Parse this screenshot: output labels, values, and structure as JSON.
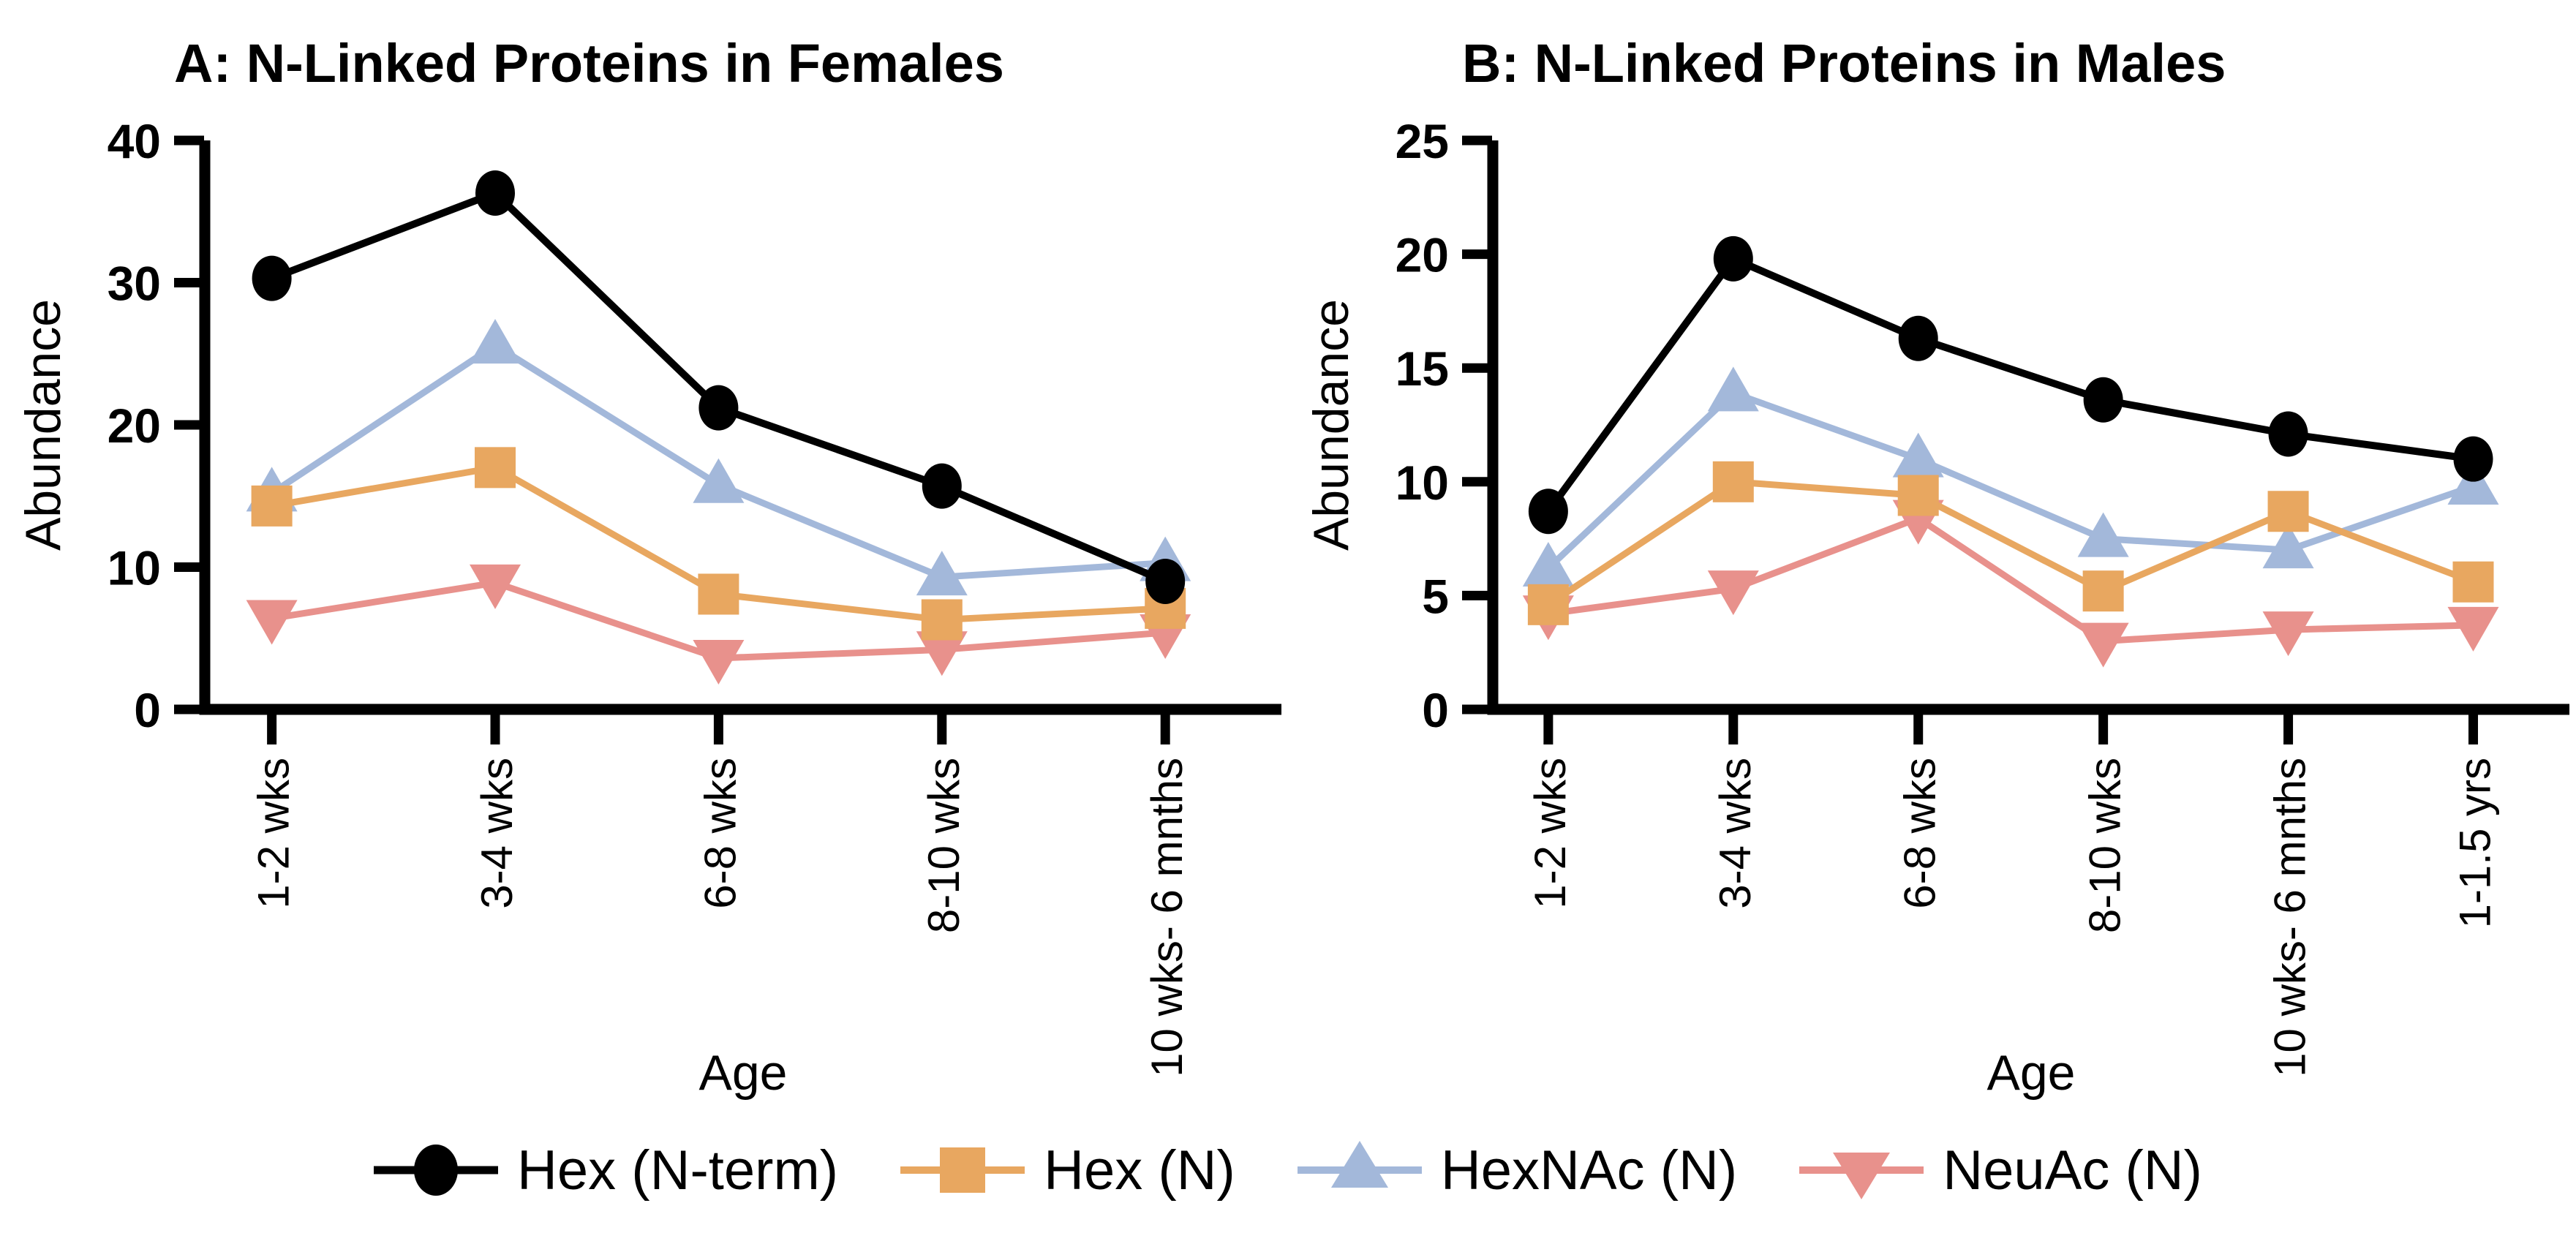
{
  "figure": {
    "background": "#ffffff",
    "legend": {
      "items": [
        {
          "label": "Hex (N-term)",
          "marker": "circle",
          "color": "#000000"
        },
        {
          "label": "Hex (N)",
          "marker": "square",
          "color": "#E8A760"
        },
        {
          "label": "HexNAc (N)",
          "marker": "triangle-up",
          "color": "#A3B8DA"
        },
        {
          "label": "NeuAc (N)",
          "marker": "triangle-down",
          "color": "#E8918C"
        }
      ]
    }
  },
  "chart_data": [
    {
      "type": "line",
      "panel": "A",
      "title": "A: N-Linked Proteins in Females",
      "xlabel": "Age",
      "ylabel": "Abundance",
      "ylim": [
        0,
        40
      ],
      "yticks": [
        0,
        10,
        20,
        30,
        40
      ],
      "grid": false,
      "legend_position": "bottom",
      "categories": [
        "1-2 wks",
        "3-4 wks",
        "6-8 wks",
        "8-10 wks",
        "10 wks- 6 mnths"
      ],
      "series": [
        {
          "name": "Hex (N-term)",
          "marker": "circle",
          "color": "#000000",
          "values": [
            30.3,
            36.3,
            21.2,
            15.7,
            9.0
          ]
        },
        {
          "name": "Hex (N)",
          "marker": "square",
          "color": "#E8A760",
          "values": [
            14.3,
            17.0,
            8.1,
            6.3,
            7.1
          ]
        },
        {
          "name": "HexNAc (N)",
          "marker": "triangle-up",
          "color": "#A3B8DA",
          "values": [
            15.2,
            25.6,
            15.8,
            9.3,
            10.3
          ]
        },
        {
          "name": "NeuAc (N)",
          "marker": "triangle-down",
          "color": "#E8918C",
          "values": [
            6.4,
            8.9,
            3.6,
            4.2,
            5.4
          ]
        }
      ]
    },
    {
      "type": "line",
      "panel": "B",
      "title": "B: N-Linked Proteins in Males",
      "xlabel": "Age",
      "ylabel": "Abundance",
      "ylim": [
        0,
        25
      ],
      "yticks": [
        0,
        5,
        10,
        15,
        20,
        25
      ],
      "grid": false,
      "legend_position": "bottom",
      "categories": [
        "1-2 wks",
        "3-4 wks",
        "6-8 wks",
        "8-10 wks",
        "10 wks- 6 mnths",
        "1-1.5 yrs"
      ],
      "series": [
        {
          "name": "Hex (N-term)",
          "marker": "circle",
          "color": "#000000",
          "values": [
            8.7,
            19.8,
            16.3,
            13.6,
            12.1,
            11.0
          ]
        },
        {
          "name": "Hex (N)",
          "marker": "square",
          "color": "#E8A760",
          "values": [
            4.6,
            10.0,
            9.4,
            5.2,
            8.7,
            5.6
          ]
        },
        {
          "name": "HexNAc (N)",
          "marker": "triangle-up",
          "color": "#A3B8DA",
          "values": [
            6.2,
            13.9,
            11.0,
            7.5,
            7.0,
            9.8
          ]
        },
        {
          "name": "NeuAc (N)",
          "marker": "triangle-down",
          "color": "#E8918C",
          "values": [
            4.2,
            5.3,
            8.4,
            3.0,
            3.5,
            3.7
          ]
        }
      ]
    }
  ]
}
